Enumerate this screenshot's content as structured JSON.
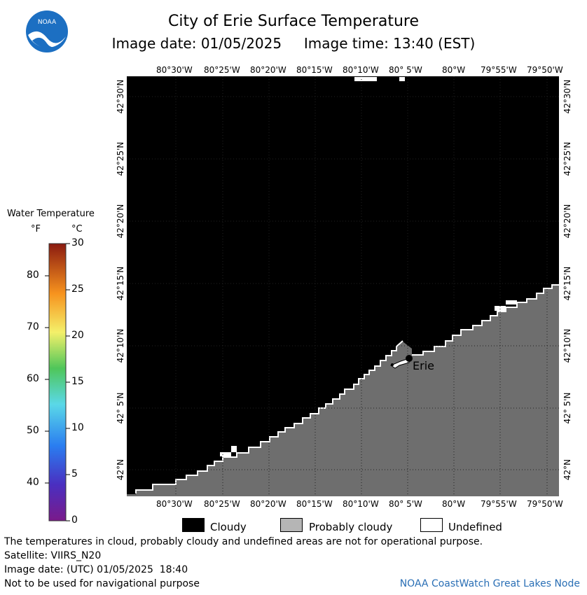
{
  "header": {
    "title": "City of Erie Surface Temperature",
    "image_date_label": "Image date: 01/05/2025",
    "image_time_label": "Image time: 13:40 (EST)",
    "logo_text": "NOAA"
  },
  "map": {
    "lon_labels": [
      "80°30'W",
      "80°25'W",
      "80°20'W",
      "80°15'W",
      "80°10'W",
      "80° 5'W",
      "80°W",
      "79°55'W",
      "79°50'W"
    ],
    "lat_labels": [
      "42°30'N",
      "42°25'N",
      "42°20'N",
      "42°15'N",
      "42°10'N",
      "42° 5'N",
      "42°N"
    ],
    "city_label": "Erie",
    "colors": {
      "cloudy": "#000000",
      "probably_cloudy": "#6e6e6e",
      "undefined": "#ffffff"
    }
  },
  "colorbar": {
    "title": "Water Temperature",
    "unit_f": "°F",
    "unit_c": "°C",
    "f_ticks": [
      "80",
      "70",
      "60",
      "50",
      "40"
    ],
    "c_ticks": [
      "30",
      "25",
      "20",
      "15",
      "10",
      "5",
      "0"
    ]
  },
  "legend": {
    "cloudy": "Cloudy",
    "probably_cloudy": "Probably cloudy",
    "undefined": "Undefined"
  },
  "footer": {
    "disclaimer": "The temperatures in cloud, probably cloudy and undefined areas are not for operational purpose.",
    "satellite": "Satellite: VIIRS_N20",
    "utc_date": "Image date: (UTC) 01/05/2025  18:40",
    "nav_warning": "Not to be used for navigational purpose",
    "credit": "NOAA CoastWatch Great Lakes Node"
  }
}
